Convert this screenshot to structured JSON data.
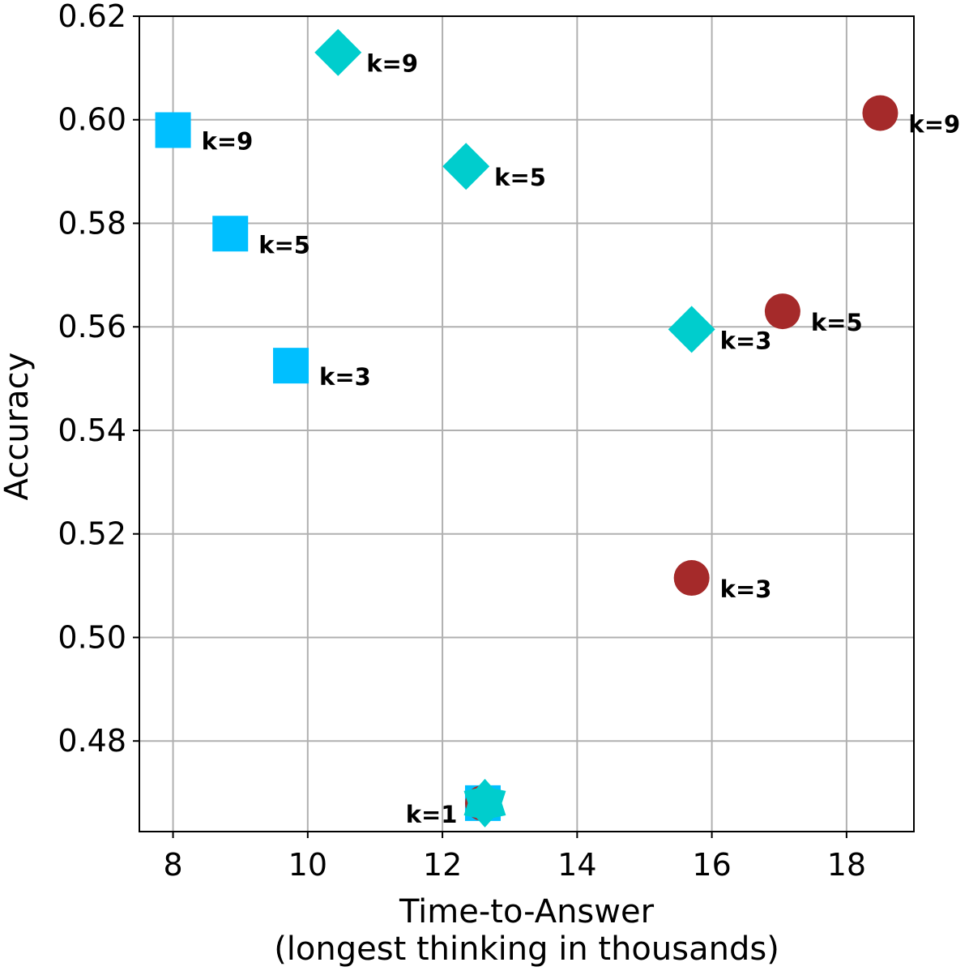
{
  "chart_data": {
    "type": "scatter",
    "title": "",
    "xlabel_line1": "Time-to-Answer",
    "xlabel_line2": "(longest thinking in thousands)",
    "ylabel": "Accuracy",
    "xlim": [
      7.5,
      19.0
    ],
    "ylim": [
      0.4625,
      0.62
    ],
    "xticks": [
      8,
      10,
      12,
      14,
      16,
      18
    ],
    "yticks": [
      0.48,
      0.5,
      0.52,
      0.54,
      0.56,
      0.58,
      0.6,
      0.62
    ],
    "xtick_labels": [
      "8",
      "10",
      "12",
      "14",
      "16",
      "18"
    ],
    "ytick_labels": [
      "0.48",
      "0.50",
      "0.52",
      "0.54",
      "0.56",
      "0.58",
      "0.60",
      "0.62"
    ],
    "grid": true,
    "series": [
      {
        "marker": "square",
        "color": "#00bfff",
        "points": [
          {
            "x": 12.6,
            "y": 0.468,
            "label": ""
          },
          {
            "x": 9.75,
            "y": 0.5525,
            "label": "k=3"
          },
          {
            "x": 8.85,
            "y": 0.578,
            "label": "k=5"
          },
          {
            "x": 8.0,
            "y": 0.598,
            "label": "k=9"
          }
        ]
      },
      {
        "marker": "circle",
        "color": "#a52a2a",
        "points": [
          {
            "x": 12.6,
            "y": 0.468,
            "label": ""
          },
          {
            "x": 15.7,
            "y": 0.5115,
            "label": "k=3"
          },
          {
            "x": 17.05,
            "y": 0.563,
            "label": "k=5"
          },
          {
            "x": 18.5,
            "y": 0.6013,
            "label": "k=9"
          }
        ]
      },
      {
        "marker": "diamond",
        "color": "#00cdcd",
        "points": [
          {
            "x": 15.7,
            "y": 0.5595,
            "label": "k=3"
          },
          {
            "x": 12.35,
            "y": 0.591,
            "label": "k=5"
          },
          {
            "x": 10.45,
            "y": 0.613,
            "label": "k=9"
          }
        ]
      },
      {
        "marker": "star",
        "color": "#00cdcd",
        "points": [
          {
            "x": 12.63,
            "y": 0.468,
            "label": "k=1"
          }
        ]
      }
    ]
  }
}
